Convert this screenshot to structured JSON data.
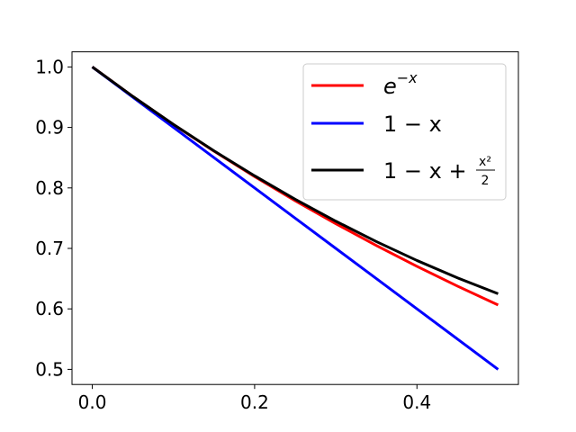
{
  "chart_data": {
    "type": "line",
    "title": "",
    "xlabel": "",
    "ylabel": "",
    "xlim": [
      -0.025,
      0.525
    ],
    "ylim": [
      0.475,
      1.025
    ],
    "grid": false,
    "legend_position": "top-right",
    "xticks": [
      0.0,
      0.2,
      0.4
    ],
    "xtick_labels": [
      "0.0",
      "0.2",
      "0.4"
    ],
    "yticks": [
      0.5,
      0.6,
      0.7,
      0.8,
      0.9,
      1.0
    ],
    "ytick_labels": [
      "0.5",
      "0.6",
      "0.7",
      "0.8",
      "0.9",
      "1.0"
    ],
    "x": [
      0,
      0.05,
      0.1,
      0.15,
      0.2,
      0.25,
      0.3,
      0.35,
      0.4,
      0.45,
      0.5
    ],
    "series": [
      {
        "name": "e^{-x}",
        "color": "#ff0000",
        "values": [
          1.0,
          0.9512,
          0.9048,
          0.8607,
          0.8187,
          0.7788,
          0.7408,
          0.7047,
          0.6703,
          0.6376,
          0.6065
        ]
      },
      {
        "name": "1 - x",
        "color": "#0000ff",
        "values": [
          1.0,
          0.95,
          0.9,
          0.85,
          0.8,
          0.75,
          0.7,
          0.65,
          0.6,
          0.55,
          0.5
        ]
      },
      {
        "name": "1 - x + x^2/2",
        "color": "#000000",
        "values": [
          1.0,
          0.95125,
          0.905,
          0.86125,
          0.82,
          0.78125,
          0.745,
          0.71125,
          0.68,
          0.65125,
          0.625
        ]
      }
    ],
    "legend": {
      "e": "e",
      "e_sup": "−x",
      "one_minus_x": "1 − x",
      "taylor_prefix": "1 − x + ",
      "frac_num": "x²",
      "frac_den": "2"
    }
  }
}
